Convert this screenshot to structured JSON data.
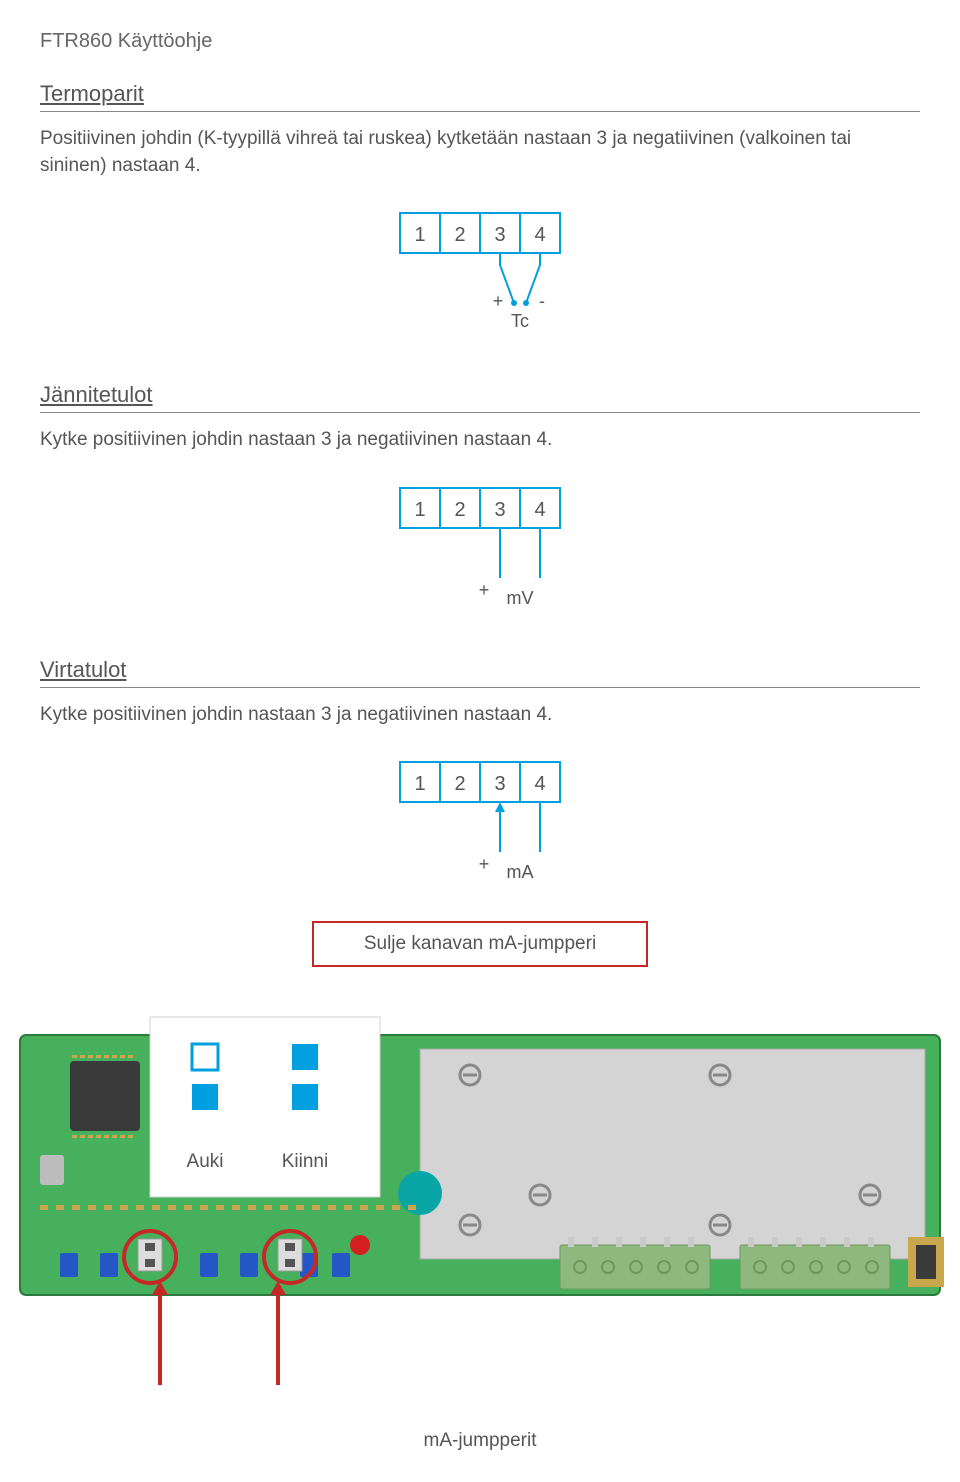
{
  "doc": {
    "header": "FTR860 Käyttöohje"
  },
  "sections": {
    "termoparit": {
      "title": "Termoparit",
      "body": "Positiivinen johdin (K-tyypillä vihreä tai ruskea) kytketään nastaan 3 ja negatiivinen (valkoinen tai sininen) nastaan 4."
    },
    "jannitetulot": {
      "title": "Jännitetulot",
      "body": "Kytke positiivinen johdin nastaan 3 ja negatiivinen nastaan 4."
    },
    "virtatulot": {
      "title": "Virtatulot",
      "body": "Kytke positiivinen johdin nastaan 3 ja negatiivinen nastaan 4."
    }
  },
  "terminal": {
    "labels": [
      "1",
      "2",
      "3",
      "4"
    ],
    "stroke": "#00a0e0",
    "text_color": "#555555",
    "font_size": 20
  },
  "diagram_tc": {
    "plus": "+",
    "minus": "-",
    "unit": "Tc"
  },
  "diagram_mv": {
    "plus": "+",
    "unit": "mV"
  },
  "diagram_ma": {
    "plus": "+",
    "unit": "mA"
  },
  "redbox": {
    "text": "Sulje kanavan mA-jumpperi",
    "border": "#c62828"
  },
  "jumper_legend": {
    "open": "Auki",
    "closed": "Kiinni",
    "accent": "#00a0e0"
  },
  "board": {
    "pcb_color": "#46b05d",
    "shield_color": "#d4d4d4",
    "shield_border": "#a9a9a9",
    "teal": "#0aa6a6",
    "connector_color": "#8fb87f",
    "screw_color": "#b9b9b9",
    "red_led": "#d42020",
    "blue": "#2457c5",
    "chip_dark": "#3a3a3a",
    "callout_red": "#c62828",
    "bottom_caption": "mA-jumpperit"
  }
}
